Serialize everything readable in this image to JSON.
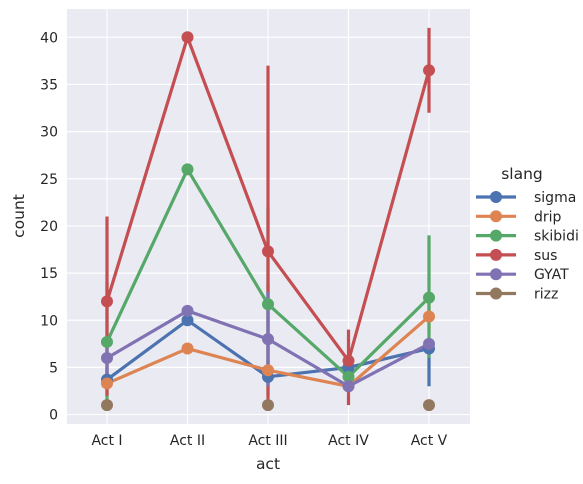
{
  "chart_data": {
    "type": "line",
    "xlabel": "act",
    "ylabel": "count",
    "categories": [
      "Act I",
      "Act II",
      "Act III",
      "Act IV",
      "Act V"
    ],
    "ylim": [
      -1,
      43
    ],
    "yticks": [
      0,
      5,
      10,
      15,
      20,
      25,
      30,
      35,
      40
    ],
    "grid": true,
    "legend": {
      "title": "slang",
      "placement": "right"
    },
    "series": [
      {
        "name": "sigma",
        "color": "#4c72b0",
        "values": [
          3.7,
          10,
          4,
          5,
          7
        ],
        "ci": [
          [
            3,
            5
          ],
          null,
          [
            3,
            14
          ],
          null,
          [
            3,
            8
          ]
        ]
      },
      {
        "name": "drip",
        "color": "#dd8452",
        "values": [
          3.3,
          7,
          4.7,
          3,
          10.4
        ],
        "ci": [
          [
            2,
            4
          ],
          null,
          [
            4,
            5.5
          ],
          null,
          [
            9,
            12
          ]
        ]
      },
      {
        "name": "skibidi",
        "color": "#55a868",
        "values": [
          7.7,
          26,
          11.7,
          4,
          12.4
        ],
        "ci": [
          [
            1,
            14
          ],
          null,
          [
            2,
            22
          ],
          [
            3,
            5
          ],
          [
            6,
            19
          ]
        ]
      },
      {
        "name": "sus",
        "color": "#c44e52",
        "values": [
          12,
          40,
          17.3,
          5.7,
          36.5
        ],
        "ci": [
          [
            2,
            21
          ],
          null,
          [
            1,
            37
          ],
          [
            1,
            9
          ],
          [
            32,
            41
          ]
        ]
      },
      {
        "name": "GYAT",
        "color": "#8172b3",
        "values": [
          6,
          11,
          8,
          3,
          7.5
        ],
        "ci": [
          [
            3,
            8
          ],
          null,
          [
            3,
            13
          ],
          null,
          [
            7,
            8
          ]
        ]
      },
      {
        "name": "rizz",
        "color": "#937860",
        "values": [
          1,
          null,
          1,
          null,
          1
        ],
        "ci": [
          null,
          null,
          null,
          null,
          null
        ]
      }
    ]
  }
}
